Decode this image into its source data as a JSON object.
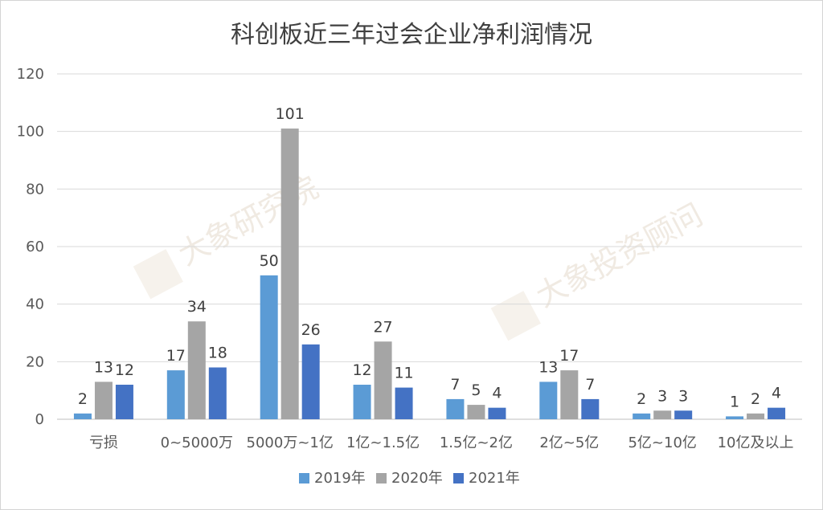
{
  "chart_data": {
    "type": "bar",
    "title": "科创板近三年过会企业净利润情况",
    "categories": [
      "亏损",
      "0~5000万",
      "5000万~1亿",
      "1亿~1.5亿",
      "1.5亿~2亿",
      "2亿~5亿",
      "5亿~10亿",
      "10亿及以上"
    ],
    "series": [
      {
        "name": "2019年",
        "color": "#5b9bd5",
        "values": [
          2,
          17,
          50,
          12,
          7,
          13,
          2,
          1
        ]
      },
      {
        "name": "2020年",
        "color": "#a5a5a5",
        "values": [
          13,
          34,
          101,
          27,
          5,
          17,
          3,
          2
        ]
      },
      {
        "name": "2021年",
        "color": "#4472c4",
        "values": [
          12,
          18,
          26,
          11,
          4,
          7,
          3,
          4
        ]
      }
    ],
    "ylim": [
      0,
      120
    ],
    "yticks": [
      0,
      20,
      40,
      60,
      80,
      100,
      120
    ],
    "grid": true,
    "legend_position": "bottom",
    "xlabel": "",
    "ylabel": ""
  },
  "watermarks": [
    "大象研究院",
    "大象投资顾问"
  ]
}
